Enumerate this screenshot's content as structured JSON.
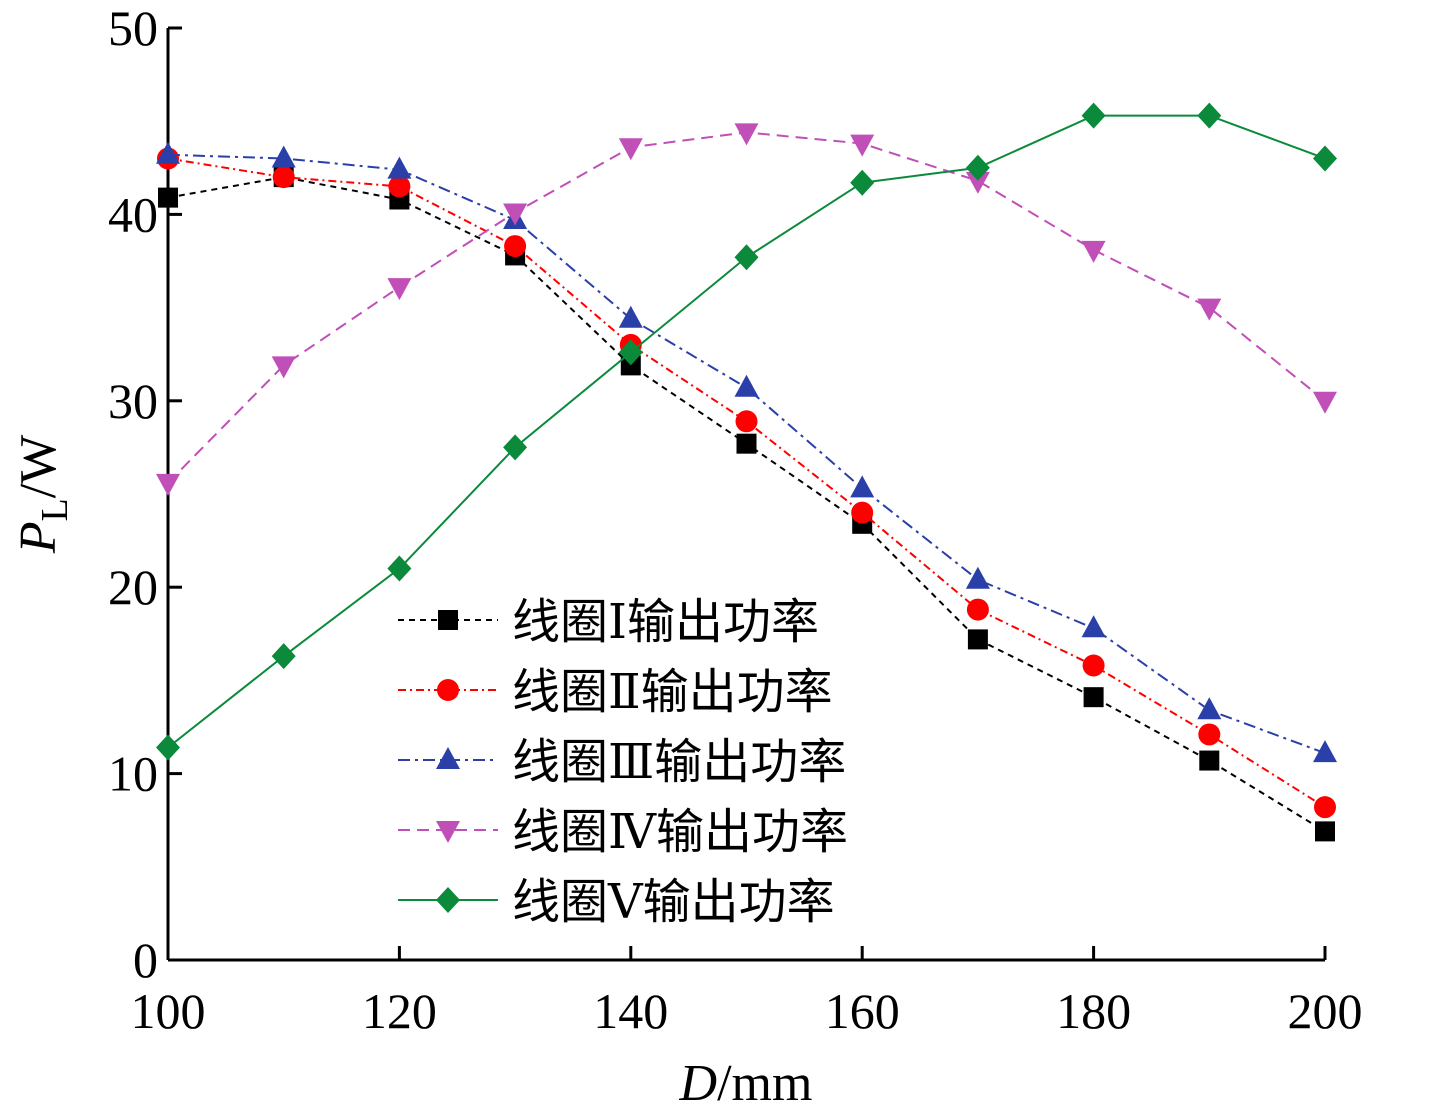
{
  "chart_data": {
    "type": "line",
    "title": "",
    "xlabel": {
      "main": "D",
      "unit": "/mm"
    },
    "ylabel": {
      "main": "P",
      "sub": "L",
      "unit": "/W"
    },
    "xlim": [
      100,
      200
    ],
    "ylim": [
      0,
      50
    ],
    "x_ticks": [
      100,
      120,
      140,
      160,
      180,
      200
    ],
    "y_ticks": [
      0,
      10,
      20,
      30,
      40,
      50
    ],
    "grid": false,
    "legend_position": "lower-left-center",
    "x": [
      100,
      110,
      120,
      130,
      140,
      150,
      160,
      170,
      180,
      190,
      200
    ],
    "series": [
      {
        "name": "线圈Ⅰ输出功率",
        "color": "#000000",
        "marker": "square",
        "dash": "6,5",
        "values": [
          40.9,
          42.0,
          40.8,
          37.8,
          31.9,
          27.7,
          23.4,
          17.2,
          14.1,
          10.7,
          6.9
        ]
      },
      {
        "name": "线圈Ⅱ输出功率",
        "color": "#ff0000",
        "marker": "circle",
        "dash": "8,4,2,4",
        "values": [
          43.0,
          42.0,
          41.5,
          38.3,
          33.0,
          28.9,
          24.0,
          18.8,
          15.8,
          12.1,
          8.2
        ]
      },
      {
        "name": "线圈Ⅲ输出功率",
        "color": "#2b3fa8",
        "marker": "triangle-up",
        "dash": "12,5,3,5",
        "values": [
          43.2,
          43.0,
          42.4,
          39.7,
          34.4,
          30.7,
          25.3,
          20.4,
          17.8,
          13.4,
          11.1
        ]
      },
      {
        "name": "线圈Ⅳ输出功率",
        "color": "#c04fb8",
        "marker": "triangle-down",
        "dash": "12,7",
        "values": [
          25.6,
          31.9,
          36.1,
          40.1,
          43.6,
          44.4,
          43.8,
          41.8,
          38.1,
          35.0,
          30.0
        ]
      },
      {
        "name": "线圈Ⅴ输出功率",
        "color": "#0a8a3a",
        "marker": "diamond",
        "dash": "",
        "values": [
          11.4,
          16.3,
          21.0,
          27.5,
          32.6,
          37.7,
          41.7,
          42.5,
          45.3,
          45.3,
          43.0
        ]
      }
    ]
  }
}
